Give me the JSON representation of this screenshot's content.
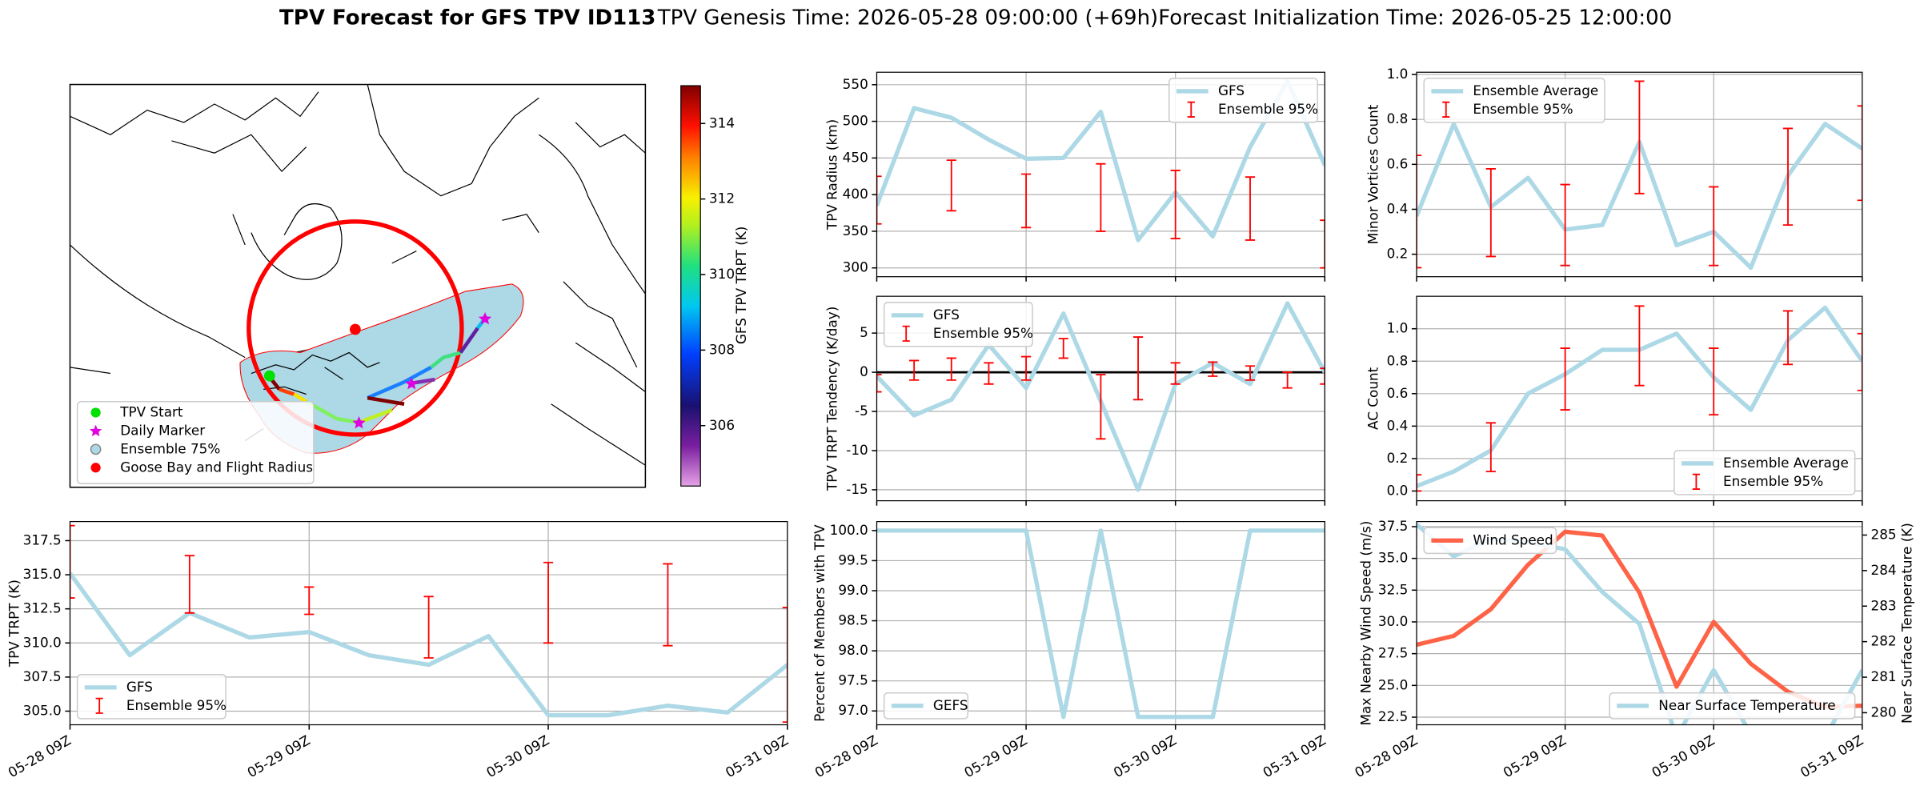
{
  "title": {
    "main": "TPV Forecast for GFS TPV ID113",
    "genesis": "TPV Genesis Time: 2026-05-28 09:00:00 (+69h)",
    "init": "Forecast Initialization Time: 2026-05-25 12:00:00"
  },
  "chart_data": [
    {
      "type": "map",
      "legend": [
        "TPV Start",
        "Daily Marker",
        "Ensemble 75%",
        "Goose Bay and Flight Radius"
      ],
      "colorbar": {
        "label": "GFS TPV TRPT (K)",
        "clim": [
          304.4,
          315.0
        ],
        "ticks": [
          306,
          308,
          310,
          312,
          314
        ]
      }
    },
    {
      "type": "line",
      "ylabel": "TPV Radius (km)",
      "x": [
        "05-28 09Z",
        "05-28 15Z",
        "05-28 21Z",
        "05-29 03Z",
        "05-29 09Z",
        "05-29 15Z",
        "05-29 21Z",
        "05-30 03Z",
        "05-30 09Z",
        "05-30 15Z",
        "05-30 21Z",
        "05-31 03Z",
        "05-31 09Z"
      ],
      "xlim": [
        "05-28 09Z",
        "05-31 09Z"
      ],
      "xticks": [
        "05-28 09Z",
        "05-29 09Z",
        "05-30 09Z",
        "05-31 09Z"
      ],
      "ylim": [
        288,
        567
      ],
      "yticks": [
        300,
        350,
        400,
        450,
        500,
        550
      ],
      "grid": true,
      "legend": "upper right",
      "series": [
        {
          "name": "GFS",
          "type": "line",
          "color": "#add8e6",
          "values": [
            385,
            518,
            505,
            475,
            449,
            450,
            513,
            338,
            403,
            343,
            465,
            555,
            440
          ]
        },
        {
          "name": "Ensemble 95%",
          "type": "errorbar",
          "color": "red",
          "low": [
            360,
            null,
            378,
            null,
            355,
            null,
            350,
            null,
            340,
            null,
            338,
            null,
            300
          ],
          "high": [
            425,
            null,
            447,
            null,
            428,
            null,
            442,
            null,
            433,
            null,
            424,
            null,
            365
          ]
        }
      ]
    },
    {
      "type": "line",
      "ylabel": "TPV TRPT Tendency (K/day)",
      "x": [
        "05-28 09Z",
        "05-28 15Z",
        "05-28 21Z",
        "05-29 03Z",
        "05-29 09Z",
        "05-29 15Z",
        "05-29 21Z",
        "05-30 03Z",
        "05-30 09Z",
        "05-30 15Z",
        "05-30 21Z",
        "05-31 03Z",
        "05-31 09Z"
      ],
      "xlim": [
        "05-28 09Z",
        "05-31 09Z"
      ],
      "xticks": [
        "05-28 09Z",
        "05-29 09Z",
        "05-30 09Z",
        "05-31 09Z"
      ],
      "ylim": [
        -16.4,
        9.7
      ],
      "yticks": [
        -15,
        -10,
        -5,
        0,
        5
      ],
      "grid": true,
      "legend": "upper left",
      "hline": 0,
      "series": [
        {
          "name": "GFS",
          "type": "line",
          "color": "#add8e6",
          "values": [
            -0.5,
            -5.5,
            -3.5,
            3.5,
            -2,
            7.5,
            -3.7,
            -15,
            -1.5,
            1.2,
            -1.5,
            8.8,
            0
          ]
        },
        {
          "name": "Ensemble 95%",
          "type": "errorbar",
          "color": "red",
          "low": [
            -2.5,
            -1,
            -1,
            -1.5,
            -1,
            1.8,
            -8.5,
            -3.5,
            -1.5,
            -0.5,
            -1,
            -2,
            -1.5
          ],
          "high": [
            -0.3,
            1.5,
            1.8,
            1.2,
            2,
            4.3,
            -0.3,
            4.5,
            1.2,
            1.3,
            0.8,
            0,
            0.5
          ]
        }
      ]
    },
    {
      "type": "line",
      "ylabel": "Minor Vortices Count",
      "x": [
        "05-28 09Z",
        "05-28 15Z",
        "05-28 21Z",
        "05-29 03Z",
        "05-29 09Z",
        "05-29 15Z",
        "05-29 21Z",
        "05-30 03Z",
        "05-30 09Z",
        "05-30 15Z",
        "05-30 21Z",
        "05-31 03Z",
        "05-31 09Z"
      ],
      "xlim": [
        "05-28 09Z",
        "05-31 09Z"
      ],
      "xticks": [
        "05-28 09Z",
        "05-29 09Z",
        "05-30 09Z",
        "05-31 09Z"
      ],
      "ylim": [
        0.1,
        1.01
      ],
      "yticks": [
        0.2,
        0.4,
        0.6,
        0.8,
        {
          "value": 1,
          "label": "1.0"
        }
      ],
      "grid": true,
      "legend": "upper left",
      "series": [
        {
          "name": "Ensemble Average",
          "type": "line",
          "color": "#add8e6",
          "values": [
            0.37,
            0.78,
            0.41,
            0.54,
            0.31,
            0.33,
            0.7,
            0.24,
            0.3,
            0.14,
            0.55,
            0.78,
            0.67
          ]
        },
        {
          "name": "Ensemble 95%",
          "type": "errorbar",
          "color": "red",
          "low": [
            0.14,
            null,
            0.19,
            null,
            0.15,
            null,
            0.47,
            null,
            0.15,
            null,
            0.33,
            null,
            0.44
          ],
          "high": [
            0.64,
            null,
            0.58,
            null,
            0.51,
            null,
            0.97,
            null,
            0.5,
            null,
            0.76,
            null,
            0.86
          ]
        }
      ]
    },
    {
      "type": "line",
      "ylabel": "AC Count",
      "x": [
        "05-28 09Z",
        "05-28 15Z",
        "05-28 21Z",
        "05-29 03Z",
        "05-29 09Z",
        "05-29 15Z",
        "05-29 21Z",
        "05-30 03Z",
        "05-30 09Z",
        "05-30 15Z",
        "05-30 21Z",
        "05-31 03Z",
        "05-31 09Z"
      ],
      "xlim": [
        "05-28 09Z",
        "05-31 09Z"
      ],
      "xticks": [
        "05-28 09Z",
        "05-29 09Z",
        "05-30 09Z",
        "05-31 09Z"
      ],
      "ylim": [
        -0.06,
        1.2
      ],
      "yticks": [
        {
          "value": 0,
          "label": "0.0"
        },
        0.2,
        0.4,
        0.6,
        0.8,
        {
          "value": 1,
          "label": "1.0"
        }
      ],
      "grid": true,
      "legend": "lower right",
      "series": [
        {
          "name": "Ensemble Average",
          "type": "line",
          "color": "#add8e6",
          "values": [
            0.03,
            0.12,
            0.25,
            0.6,
            0.72,
            0.87,
            0.87,
            0.97,
            0.7,
            0.5,
            0.93,
            1.13,
            0.8
          ]
        },
        {
          "name": "Ensemble 95%",
          "type": "errorbar",
          "color": "red",
          "low": [
            0,
            null,
            0.12,
            null,
            0.5,
            null,
            0.65,
            null,
            0.47,
            null,
            0.78,
            null,
            0.62
          ],
          "high": [
            0.1,
            null,
            0.42,
            null,
            0.88,
            null,
            1.14,
            null,
            0.88,
            null,
            1.11,
            null,
            0.97
          ]
        }
      ]
    },
    {
      "type": "line",
      "ylabel": "TPV TRPT (K)",
      "x": [
        "05-28 09Z",
        "05-28 15Z",
        "05-28 21Z",
        "05-29 03Z",
        "05-29 09Z",
        "05-29 15Z",
        "05-29 21Z",
        "05-30 03Z",
        "05-30 09Z",
        "05-30 15Z",
        "05-30 21Z",
        "05-31 03Z",
        "05-31 09Z"
      ],
      "xlim": [
        "05-28 09Z",
        "05-31 09Z"
      ],
      "xticks": [
        "05-28 09Z",
        "05-29 09Z",
        "05-30 09Z",
        "05-31 09Z"
      ],
      "ylim": [
        304.0,
        318.9
      ],
      "yticks": [
        {
          "value": 305,
          "label": "305.0"
        },
        307.5,
        {
          "value": 310,
          "label": "310.0"
        },
        312.5,
        {
          "value": 315,
          "label": "315.0"
        },
        317.5
      ],
      "grid": true,
      "legend": "lower left",
      "series": [
        {
          "name": "GFS",
          "type": "line",
          "color": "#add8e6",
          "values": [
            315.1,
            309.1,
            312.2,
            310.4,
            310.8,
            309.1,
            308.4,
            310.5,
            304.7,
            304.7,
            305.4,
            304.9,
            308.4
          ]
        },
        {
          "name": "Ensemble 95%",
          "type": "errorbar",
          "color": "red",
          "low": [
            313.3,
            null,
            312.2,
            null,
            312.1,
            null,
            308.9,
            null,
            310,
            null,
            309.8,
            null,
            304.2
          ],
          "high": [
            318.6,
            null,
            316.4,
            null,
            314.1,
            null,
            313.4,
            null,
            315.9,
            null,
            315.8,
            null,
            312.6
          ]
        }
      ]
    },
    {
      "type": "line",
      "ylabel": "Percent of Members with TPV",
      "x": [
        "05-28 09Z",
        "05-28 15Z",
        "05-28 21Z",
        "05-29 03Z",
        "05-29 09Z",
        "05-29 15Z",
        "05-29 21Z",
        "05-30 03Z",
        "05-30 09Z",
        "05-30 15Z",
        "05-30 21Z",
        "05-31 03Z",
        "05-31 09Z"
      ],
      "xlim": [
        "05-28 09Z",
        "05-31 09Z"
      ],
      "xticks": [
        "05-28 09Z",
        "05-29 09Z",
        "05-30 09Z",
        "05-31 09Z"
      ],
      "ylim": [
        96.77,
        100.15
      ],
      "yticks": [
        {
          "value": 97,
          "label": "97.0"
        },
        97.5,
        {
          "value": 98,
          "label": "98.0"
        },
        98.5,
        {
          "value": 99,
          "label": "99.0"
        },
        99.5,
        {
          "value": 100,
          "label": "100.0"
        }
      ],
      "grid": true,
      "legend": "lower left",
      "series": [
        {
          "name": "GEFS",
          "type": "line",
          "color": "#add8e6",
          "values": [
            100,
            100,
            100,
            100,
            100,
            96.9,
            100,
            96.9,
            96.9,
            96.9,
            100,
            100,
            100
          ]
        }
      ]
    },
    {
      "type": "line",
      "ylabel": "Max Nearby Wind Speed (m/s)",
      "ylabel_color": "tomato",
      "y2label": "Near Surface Temperature (K)",
      "y2label_color": "royalblue",
      "x": [
        "05-28 09Z",
        "05-28 15Z",
        "05-28 21Z",
        "05-29 03Z",
        "05-29 09Z",
        "05-29 15Z",
        "05-29 21Z",
        "05-30 03Z",
        "05-30 09Z",
        "05-30 15Z",
        "05-30 21Z",
        "05-31 03Z",
        "05-31 09Z"
      ],
      "xlim": [
        "05-28 09Z",
        "05-31 09Z"
      ],
      "xticks": [
        "05-28 09Z",
        "05-29 09Z",
        "05-30 09Z",
        "05-31 09Z"
      ],
      "ylim": [
        21.9,
        37.9
      ],
      "yticks": [
        22.5,
        {
          "value": 25,
          "label": "25.0"
        },
        27.5,
        {
          "value": 30,
          "label": "30.0"
        },
        32.5,
        {
          "value": 35,
          "label": "35.0"
        },
        37.5
      ],
      "y2lim": [
        279.66,
        285.38
      ],
      "y2ticks": [
        280,
        281,
        282,
        283,
        284,
        285
      ],
      "grid": true,
      "legend": "upper left",
      "legend2": "lower right",
      "series": [
        {
          "name": "Wind Speed",
          "type": "line",
          "color": "tomato",
          "values": [
            28.2,
            28.9,
            31.0,
            34.5,
            37.1,
            36.8,
            32.3,
            24.9,
            30.0,
            26.7,
            24.5,
            23.3,
            23.4
          ]
        },
        {
          "name": "Near Surface Temperature",
          "type": "line",
          "axis": "y2",
          "color": "#add8e6",
          "values": [
            285.3,
            284.4,
            284.9,
            284.8,
            284.6,
            283.4,
            282.5,
            279.3,
            281.2,
            279.4,
            279.5,
            279.3,
            281.2
          ]
        }
      ]
    }
  ]
}
